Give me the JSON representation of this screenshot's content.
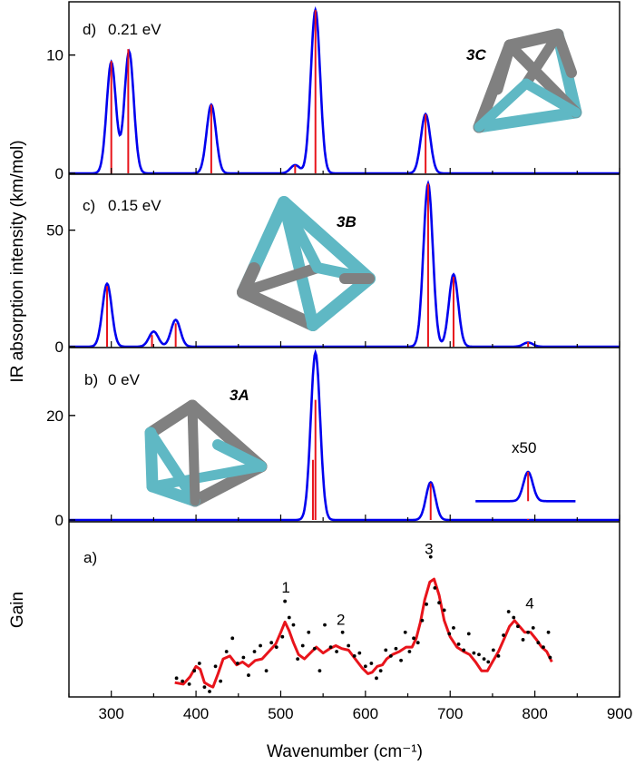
{
  "figure": {
    "xlabel": "Wavenumber (cm⁻¹)",
    "ylabel_top": "IR absorption intensity (km/mol)",
    "ylabel_bottom": "Gain"
  },
  "colors": {
    "envelope": "#0000ee",
    "sticks": "#e8141b",
    "measured": "#e8141b",
    "points": "#000000",
    "cluster_gray": "#808080",
    "cluster_teal": "#5fb8c4"
  },
  "chart_data": [
    {
      "id": "d",
      "type": "line",
      "panel_label": "d)",
      "energy": "0.21 eV",
      "isomer": "3C",
      "xlim": [
        250,
        900
      ],
      "ylim": [
        0,
        14.5
      ],
      "yticks": [
        "0",
        "10"
      ],
      "ytick_values": [
        0,
        10
      ],
      "sticks": [
        {
          "x": 300,
          "y": 9.5
        },
        {
          "x": 320,
          "y": 10.5
        },
        {
          "x": 418,
          "y": 5.8
        },
        {
          "x": 517,
          "y": 0.7
        },
        {
          "x": 541,
          "y": 13.8
        },
        {
          "x": 671,
          "y": 5.0
        }
      ],
      "bands": [
        {
          "x": 300,
          "a": 9.4
        },
        {
          "x": 321,
          "a": 10.3
        },
        {
          "x": 418,
          "a": 5.8
        },
        {
          "x": 517,
          "a": 0.7
        },
        {
          "x": 541,
          "a": 13.8
        },
        {
          "x": 671,
          "a": 5.0
        }
      ],
      "fwhm": 13
    },
    {
      "id": "c",
      "type": "line",
      "panel_label": "c)",
      "energy": "0.15 eV",
      "isomer": "3B",
      "xlim": [
        250,
        900
      ],
      "ylim": [
        0,
        74
      ],
      "yticks": [
        "0",
        "50"
      ],
      "ytick_values": [
        0,
        50
      ],
      "sticks": [
        {
          "x": 295,
          "y": 26
        },
        {
          "x": 348,
          "y": 5
        },
        {
          "x": 376,
          "y": 10
        },
        {
          "x": 674,
          "y": 70
        },
        {
          "x": 704,
          "y": 30
        },
        {
          "x": 792,
          "y": 2
        }
      ],
      "bands": [
        {
          "x": 295,
          "a": 27
        },
        {
          "x": 350,
          "a": 6.5
        },
        {
          "x": 376,
          "a": 11.5
        },
        {
          "x": 674,
          "a": 70
        },
        {
          "x": 704,
          "a": 31
        },
        {
          "x": 792,
          "a": 1.8
        }
      ],
      "fwhm": 13
    },
    {
      "id": "b",
      "type": "line",
      "panel_label": "b)",
      "energy": "0 eV",
      "isomer": "3A",
      "scale_note": "x50",
      "xlim": [
        250,
        900
      ],
      "ylim": [
        0,
        33
      ],
      "yticks": [
        "0",
        "20"
      ],
      "ytick_values": [
        0,
        20
      ],
      "sticks": [
        {
          "x": 538,
          "y": 11.5
        },
        {
          "x": 541,
          "y": 23
        },
        {
          "x": 677,
          "y": 7
        },
        {
          "x": 792,
          "y": 0.2
        }
      ],
      "bands": [
        {
          "x": 541,
          "a": 32
        },
        {
          "x": 677,
          "a": 7.2
        }
      ],
      "inset_band": {
        "x": 792,
        "a": 9.2,
        "baseline": 3.6,
        "xmin": 730,
        "xmax": 848
      },
      "fwhm": 13
    },
    {
      "id": "a",
      "type": "scatter",
      "panel_label": "a)",
      "xlim": [
        250,
        900
      ],
      "ylim": [
        0,
        1
      ],
      "xticks": [
        "300",
        "400",
        "500",
        "600",
        "700",
        "800",
        "900"
      ],
      "xtick_values": [
        300,
        400,
        500,
        600,
        700,
        800,
        900
      ],
      "peak_labels": [
        {
          "text": "1",
          "x": 506,
          "y": 0.67
        },
        {
          "text": "2",
          "x": 571,
          "y": 0.45
        },
        {
          "text": "3",
          "x": 675,
          "y": 0.93
        },
        {
          "text": "4",
          "x": 794,
          "y": 0.56
        }
      ],
      "smoothed": [
        {
          "x": 375,
          "y": 0.06
        },
        {
          "x": 385,
          "y": 0.05
        },
        {
          "x": 393,
          "y": 0.1
        },
        {
          "x": 400,
          "y": 0.17
        },
        {
          "x": 405,
          "y": 0.15
        },
        {
          "x": 410,
          "y": 0.06
        },
        {
          "x": 416,
          "y": 0.04
        },
        {
          "x": 420,
          "y": 0.03
        },
        {
          "x": 426,
          "y": 0.12
        },
        {
          "x": 432,
          "y": 0.22
        },
        {
          "x": 440,
          "y": 0.24
        },
        {
          "x": 448,
          "y": 0.18
        },
        {
          "x": 455,
          "y": 0.2
        },
        {
          "x": 462,
          "y": 0.17
        },
        {
          "x": 470,
          "y": 0.21
        },
        {
          "x": 478,
          "y": 0.22
        },
        {
          "x": 486,
          "y": 0.27
        },
        {
          "x": 494,
          "y": 0.32
        },
        {
          "x": 500,
          "y": 0.4
        },
        {
          "x": 505,
          "y": 0.47
        },
        {
          "x": 510,
          "y": 0.41
        },
        {
          "x": 515,
          "y": 0.33
        },
        {
          "x": 521,
          "y": 0.25
        },
        {
          "x": 528,
          "y": 0.22
        },
        {
          "x": 535,
          "y": 0.26
        },
        {
          "x": 542,
          "y": 0.3
        },
        {
          "x": 550,
          "y": 0.26
        },
        {
          "x": 558,
          "y": 0.29
        },
        {
          "x": 565,
          "y": 0.31
        },
        {
          "x": 572,
          "y": 0.29
        },
        {
          "x": 580,
          "y": 0.28
        },
        {
          "x": 588,
          "y": 0.22
        },
        {
          "x": 596,
          "y": 0.16
        },
        {
          "x": 603,
          "y": 0.12
        },
        {
          "x": 608,
          "y": 0.13
        },
        {
          "x": 614,
          "y": 0.17
        },
        {
          "x": 620,
          "y": 0.18
        },
        {
          "x": 625,
          "y": 0.22
        },
        {
          "x": 632,
          "y": 0.25
        },
        {
          "x": 640,
          "y": 0.27
        },
        {
          "x": 648,
          "y": 0.3
        },
        {
          "x": 655,
          "y": 0.3
        },
        {
          "x": 660,
          "y": 0.36
        },
        {
          "x": 665,
          "y": 0.47
        },
        {
          "x": 670,
          "y": 0.62
        },
        {
          "x": 676,
          "y": 0.74
        },
        {
          "x": 681,
          "y": 0.76
        },
        {
          "x": 687,
          "y": 0.65
        },
        {
          "x": 693,
          "y": 0.48
        },
        {
          "x": 700,
          "y": 0.37
        },
        {
          "x": 708,
          "y": 0.3
        },
        {
          "x": 716,
          "y": 0.27
        },
        {
          "x": 723,
          "y": 0.25
        },
        {
          "x": 730,
          "y": 0.2
        },
        {
          "x": 737,
          "y": 0.14
        },
        {
          "x": 744,
          "y": 0.14
        },
        {
          "x": 750,
          "y": 0.2
        },
        {
          "x": 757,
          "y": 0.27
        },
        {
          "x": 764,
          "y": 0.36
        },
        {
          "x": 770,
          "y": 0.44
        },
        {
          "x": 776,
          "y": 0.48
        },
        {
          "x": 782,
          "y": 0.44
        },
        {
          "x": 788,
          "y": 0.4
        },
        {
          "x": 795,
          "y": 0.4
        },
        {
          "x": 802,
          "y": 0.35
        },
        {
          "x": 808,
          "y": 0.3
        },
        {
          "x": 814,
          "y": 0.27
        },
        {
          "x": 820,
          "y": 0.2
        }
      ],
      "points": [
        {
          "x": 377,
          "y": 0.09
        },
        {
          "x": 384,
          "y": 0.07
        },
        {
          "x": 392,
          "y": 0.05
        },
        {
          "x": 398,
          "y": 0.14
        },
        {
          "x": 404,
          "y": 0.19
        },
        {
          "x": 410,
          "y": 0.03
        },
        {
          "x": 416,
          "y": 0.0
        },
        {
          "x": 423,
          "y": 0.17
        },
        {
          "x": 429,
          "y": 0.07
        },
        {
          "x": 436,
          "y": 0.27
        },
        {
          "x": 443,
          "y": 0.36
        },
        {
          "x": 449,
          "y": 0.19
        },
        {
          "x": 456,
          "y": 0.23
        },
        {
          "x": 462,
          "y": 0.11
        },
        {
          "x": 469,
          "y": 0.27
        },
        {
          "x": 476,
          "y": 0.31
        },
        {
          "x": 483,
          "y": 0.14
        },
        {
          "x": 489,
          "y": 0.33
        },
        {
          "x": 495,
          "y": 0.3
        },
        {
          "x": 502,
          "y": 0.37
        },
        {
          "x": 505,
          "y": 0.61
        },
        {
          "x": 510,
          "y": 0.5
        },
        {
          "x": 515,
          "y": 0.45
        },
        {
          "x": 520,
          "y": 0.22
        },
        {
          "x": 526,
          "y": 0.31
        },
        {
          "x": 533,
          "y": 0.4
        },
        {
          "x": 540,
          "y": 0.29
        },
        {
          "x": 546,
          "y": 0.14
        },
        {
          "x": 552,
          "y": 0.45
        },
        {
          "x": 559,
          "y": 0.3
        },
        {
          "x": 566,
          "y": 0.27
        },
        {
          "x": 573,
          "y": 0.4
        },
        {
          "x": 580,
          "y": 0.31
        },
        {
          "x": 587,
          "y": 0.24
        },
        {
          "x": 593,
          "y": 0.26
        },
        {
          "x": 600,
          "y": 0.17
        },
        {
          "x": 607,
          "y": 0.19
        },
        {
          "x": 613,
          "y": 0.09
        },
        {
          "x": 618,
          "y": 0.14
        },
        {
          "x": 624,
          "y": 0.28
        },
        {
          "x": 630,
          "y": 0.24
        },
        {
          "x": 636,
          "y": 0.29
        },
        {
          "x": 642,
          "y": 0.21
        },
        {
          "x": 647,
          "y": 0.4
        },
        {
          "x": 652,
          "y": 0.27
        },
        {
          "x": 657,
          "y": 0.36
        },
        {
          "x": 662,
          "y": 0.33
        },
        {
          "x": 667,
          "y": 0.48
        },
        {
          "x": 672,
          "y": 0.59
        },
        {
          "x": 677,
          "y": 0.91
        },
        {
          "x": 682,
          "y": 0.7
        },
        {
          "x": 687,
          "y": 0.6
        },
        {
          "x": 693,
          "y": 0.55
        },
        {
          "x": 699,
          "y": 0.39
        },
        {
          "x": 704,
          "y": 0.43
        },
        {
          "x": 710,
          "y": 0.32
        },
        {
          "x": 716,
          "y": 0.28
        },
        {
          "x": 722,
          "y": 0.39
        },
        {
          "x": 728,
          "y": 0.26
        },
        {
          "x": 734,
          "y": 0.25
        },
        {
          "x": 740,
          "y": 0.22
        },
        {
          "x": 745,
          "y": 0.2
        },
        {
          "x": 751,
          "y": 0.28
        },
        {
          "x": 757,
          "y": 0.24
        },
        {
          "x": 763,
          "y": 0.38
        },
        {
          "x": 769,
          "y": 0.54
        },
        {
          "x": 775,
          "y": 0.5
        },
        {
          "x": 780,
          "y": 0.44
        },
        {
          "x": 786,
          "y": 0.35
        },
        {
          "x": 792,
          "y": 0.4
        },
        {
          "x": 798,
          "y": 0.43
        },
        {
          "x": 804,
          "y": 0.33
        },
        {
          "x": 810,
          "y": 0.3
        },
        {
          "x": 816,
          "y": 0.4
        },
        {
          "x": 818,
          "y": 0.23
        }
      ]
    }
  ]
}
